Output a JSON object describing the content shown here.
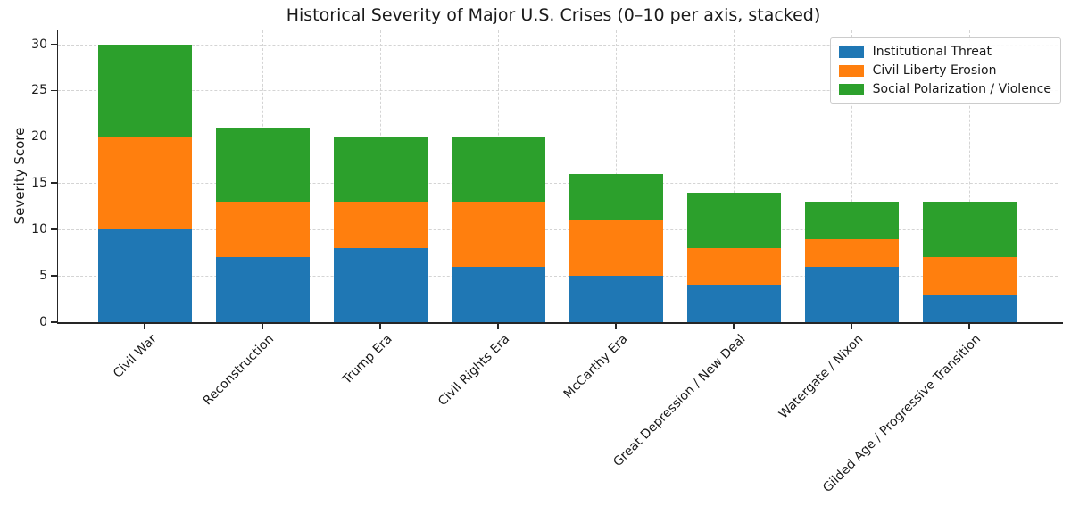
{
  "chart_data": {
    "type": "bar",
    "stacked": true,
    "title": "Historical Severity of Major U.S. Crises (0–10 per axis, stacked)",
    "xlabel": "",
    "ylabel": "Severity Score",
    "categories": [
      "Civil War",
      "Reconstruction",
      "Trump Era",
      "Civil Rights Era",
      "McCarthy Era",
      "Great Depression / New Deal",
      "Watergate / Nixon",
      "Gilded Age / Progressive Transition"
    ],
    "series": [
      {
        "name": "Institutional Threat",
        "color": "#1f77b4",
        "values": [
          10,
          7,
          8,
          6,
          5,
          4,
          6,
          3
        ]
      },
      {
        "name": "Civil Liberty Erosion",
        "color": "#ff7f0e",
        "values": [
          10,
          6,
          5,
          7,
          6,
          4,
          3,
          4
        ]
      },
      {
        "name": "Social Polarization / Violence",
        "color": "#2ca02c",
        "values": [
          10,
          8,
          7,
          7,
          5,
          6,
          4,
          6
        ]
      }
    ],
    "stack_totals": [
      30,
      21,
      20,
      20,
      16,
      14,
      13,
      13
    ],
    "yticks": [
      0,
      5,
      10,
      15,
      20,
      25,
      30
    ],
    "ylim": [
      0,
      31.5
    ],
    "grid": "dashed horizontal and vertical gridlines",
    "legend_position": "upper right",
    "axis_colors": {
      "spine": "#262626",
      "grid": "#d4d4d4",
      "text": "#1a1a1a"
    }
  }
}
